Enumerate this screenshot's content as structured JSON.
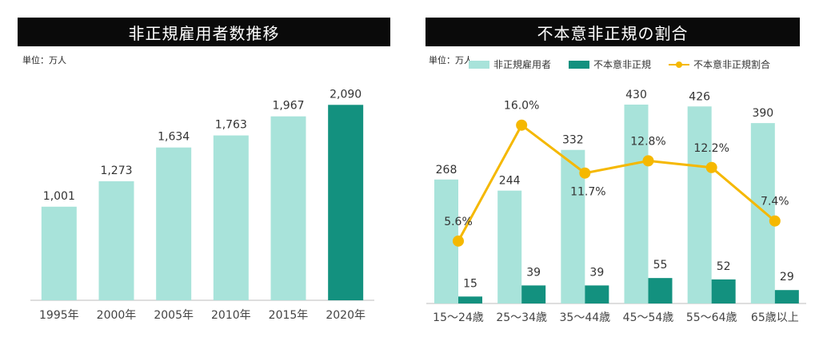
{
  "left": {
    "title": "非正規雇用者数推移",
    "unit": "単位：万人"
  },
  "right": {
    "title": "不本意非正規の割合",
    "unit": "単位：万人",
    "legend": [
      "非正規雇用者",
      "不本意非正規",
      "不本意非正規割合"
    ]
  },
  "colors": {
    "light": "#a8e3da",
    "dark": "#13917f",
    "line": "#f5b800",
    "axis": "#bdbdbd"
  },
  "chart_data": [
    {
      "type": "bar",
      "title": "非正規雇用者数推移",
      "categories": [
        "1995年",
        "2000年",
        "2005年",
        "2010年",
        "2015年",
        "2020年"
      ],
      "values": [
        1001,
        1273,
        1634,
        1763,
        1967,
        2090
      ],
      "value_labels": [
        "1,001",
        "1,273",
        "1,634",
        "1,763",
        "1,967",
        "2,090"
      ],
      "highlight_index": 5,
      "ylim": [
        0,
        2400
      ],
      "grid": false
    },
    {
      "type": "bar",
      "title": "不本意非正規の割合",
      "categories": [
        "15～24歳",
        "25～34歳",
        "35～44歳",
        "45～54歳",
        "55～64歳",
        "65歳以上"
      ],
      "series": [
        {
          "name": "非正規雇用者",
          "type": "bar",
          "values": [
            268,
            244,
            332,
            430,
            426,
            390
          ]
        },
        {
          "name": "不本意非正規",
          "type": "bar",
          "values": [
            15,
            39,
            39,
            55,
            52,
            29
          ]
        },
        {
          "name": "不本意非正規割合",
          "type": "line",
          "values": [
            5.6,
            16.0,
            11.7,
            12.8,
            12.2,
            7.4
          ],
          "labels": [
            "5.6%",
            "16.0%",
            "11.7%",
            "12.8%",
            "12.2%",
            "7.4%"
          ]
        }
      ],
      "ylim": [
        0,
        480
      ],
      "y2lim": [
        0,
        22
      ],
      "legend_position": "top",
      "grid": false
    }
  ]
}
